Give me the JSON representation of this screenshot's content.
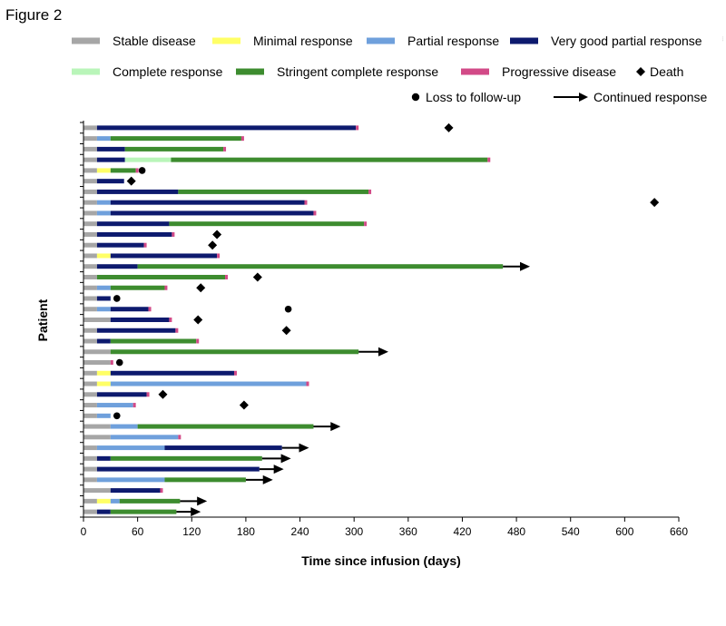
{
  "figure_label": "Figure 2",
  "side_note": "...",
  "colors": {
    "stable": "#a6a6a6",
    "minimal": "#ffff66",
    "partial": "#6fa0dc",
    "vgpr": "#0d1a6e",
    "complete": "#b9f5b9",
    "stringent": "#3d8c2f",
    "progressive": "#d24a87",
    "marker": "#000000"
  },
  "legend": [
    {
      "key": "stable",
      "label": "Stable disease",
      "kind": "bar"
    },
    {
      "key": "minimal",
      "label": "Minimal response",
      "kind": "bar"
    },
    {
      "key": "partial",
      "label": "Partial response",
      "kind": "bar"
    },
    {
      "key": "vgpr",
      "label": "Very good partial response",
      "kind": "bar"
    },
    {
      "key": "complete",
      "label": "Complete response",
      "kind": "bar"
    },
    {
      "key": "stringent",
      "label": "Stringent complete response",
      "kind": "bar"
    },
    {
      "key": "progressive",
      "label": "Progressive disease",
      "kind": "bar"
    },
    {
      "key": "death",
      "label": "Death",
      "kind": "diamond"
    },
    {
      "key": "loss",
      "label": "Loss to follow-up",
      "kind": "circle"
    },
    {
      "key": "continued",
      "label": "Continued response",
      "kind": "arrow"
    }
  ],
  "chart_data": {
    "type": "bar",
    "orientation": "horizontal-stacked-swimmer",
    "xlabel": "Time since infusion (days)",
    "ylabel": "Patient",
    "xlim": [
      0,
      660
    ],
    "xticks": [
      0,
      60,
      120,
      180,
      240,
      300,
      360,
      420,
      480,
      540,
      600,
      660
    ],
    "grid": false,
    "legend_position": "top",
    "patients": [
      {
        "segments": [
          [
            "stable",
            0,
            15
          ],
          [
            "vgpr",
            15,
            302
          ],
          [
            "progressive",
            302,
            305
          ]
        ],
        "event": "death",
        "event_day": 405
      },
      {
        "segments": [
          [
            "stable",
            0,
            15
          ],
          [
            "partial",
            15,
            30
          ],
          [
            "stringent",
            30,
            175
          ],
          [
            "progressive",
            175,
            178
          ]
        ]
      },
      {
        "segments": [
          [
            "stable",
            0,
            15
          ],
          [
            "vgpr",
            15,
            46
          ],
          [
            "stringent",
            46,
            155
          ],
          [
            "progressive",
            155,
            158
          ]
        ]
      },
      {
        "segments": [
          [
            "stable",
            0,
            15
          ],
          [
            "vgpr",
            15,
            46
          ],
          [
            "complete",
            46,
            97
          ],
          [
            "stringent",
            97,
            448
          ],
          [
            "progressive",
            448,
            451
          ]
        ]
      },
      {
        "segments": [
          [
            "stable",
            0,
            15
          ],
          [
            "minimal",
            15,
            30
          ],
          [
            "stringent",
            30,
            58
          ],
          [
            "progressive",
            58,
            61
          ]
        ],
        "event": "loss",
        "event_day": 65
      },
      {
        "segments": [
          [
            "stable",
            0,
            15
          ],
          [
            "vgpr",
            15,
            45
          ]
        ],
        "event": "death",
        "event_day": 53
      },
      {
        "segments": [
          [
            "stable",
            0,
            15
          ],
          [
            "vgpr",
            15,
            105
          ],
          [
            "stringent",
            105,
            316
          ],
          [
            "progressive",
            316,
            319
          ]
        ]
      },
      {
        "segments": [
          [
            "stable",
            0,
            15
          ],
          [
            "partial",
            15,
            30
          ],
          [
            "vgpr",
            30,
            245
          ],
          [
            "progressive",
            245,
            248
          ]
        ],
        "event": "death",
        "event_day": 633
      },
      {
        "segments": [
          [
            "stable",
            0,
            15
          ],
          [
            "partial",
            15,
            30
          ],
          [
            "vgpr",
            30,
            255
          ],
          [
            "progressive",
            255,
            258
          ]
        ]
      },
      {
        "segments": [
          [
            "stable",
            0,
            15
          ],
          [
            "vgpr",
            15,
            95
          ],
          [
            "stringent",
            95,
            311
          ],
          [
            "progressive",
            311,
            314
          ]
        ]
      },
      {
        "segments": [
          [
            "stable",
            0,
            15
          ],
          [
            "vgpr",
            15,
            98
          ],
          [
            "progressive",
            98,
            101
          ]
        ],
        "event": "death",
        "event_day": 148
      },
      {
        "segments": [
          [
            "stable",
            0,
            15
          ],
          [
            "vgpr",
            15,
            67
          ],
          [
            "progressive",
            67,
            70
          ]
        ],
        "event": "death",
        "event_day": 143
      },
      {
        "segments": [
          [
            "stable",
            0,
            15
          ],
          [
            "minimal",
            15,
            30
          ],
          [
            "vgpr",
            30,
            148
          ],
          [
            "progressive",
            148,
            151
          ]
        ]
      },
      {
        "segments": [
          [
            "stable",
            0,
            15
          ],
          [
            "vgpr",
            15,
            60
          ],
          [
            "stringent",
            60,
            465
          ]
        ],
        "event": "continued",
        "event_day": 495
      },
      {
        "segments": [
          [
            "stable",
            0,
            15
          ],
          [
            "stringent",
            15,
            157
          ],
          [
            "progressive",
            157,
            160
          ]
        ],
        "event": "death",
        "event_day": 193
      },
      {
        "segments": [
          [
            "stable",
            0,
            15
          ],
          [
            "partial",
            15,
            30
          ],
          [
            "stringent",
            30,
            90
          ],
          [
            "progressive",
            90,
            93
          ]
        ],
        "event": "death",
        "event_day": 130
      },
      {
        "segments": [
          [
            "stable",
            0,
            15
          ],
          [
            "vgpr",
            15,
            30
          ]
        ],
        "event": "loss",
        "event_day": 37
      },
      {
        "segments": [
          [
            "stable",
            0,
            15
          ],
          [
            "partial",
            15,
            30
          ],
          [
            "vgpr",
            30,
            72
          ],
          [
            "progressive",
            72,
            75
          ]
        ],
        "event": "loss",
        "event_day": 227
      },
      {
        "segments": [
          [
            "stable",
            0,
            30
          ],
          [
            "vgpr",
            30,
            95
          ],
          [
            "progressive",
            95,
            98
          ]
        ],
        "event": "death",
        "event_day": 127
      },
      {
        "segments": [
          [
            "stable",
            0,
            15
          ],
          [
            "vgpr",
            15,
            102
          ],
          [
            "progressive",
            102,
            105
          ]
        ],
        "event": "death",
        "event_day": 225
      },
      {
        "segments": [
          [
            "stable",
            0,
            15
          ],
          [
            "vgpr",
            15,
            30
          ],
          [
            "stringent",
            30,
            125
          ],
          [
            "progressive",
            125,
            128
          ]
        ]
      },
      {
        "segments": [
          [
            "stable",
            0,
            30
          ],
          [
            "stringent",
            30,
            305
          ]
        ],
        "event": "continued",
        "event_day": 338
      },
      {
        "segments": [
          [
            "stable",
            0,
            30
          ],
          [
            "progressive",
            30,
            33
          ]
        ],
        "event": "loss",
        "event_day": 40
      },
      {
        "segments": [
          [
            "stable",
            0,
            15
          ],
          [
            "minimal",
            15,
            30
          ],
          [
            "vgpr",
            30,
            167
          ],
          [
            "progressive",
            167,
            170
          ]
        ]
      },
      {
        "segments": [
          [
            "stable",
            0,
            15
          ],
          [
            "minimal",
            15,
            30
          ],
          [
            "partial",
            30,
            247
          ],
          [
            "progressive",
            247,
            250
          ]
        ]
      },
      {
        "segments": [
          [
            "stable",
            0,
            15
          ],
          [
            "vgpr",
            15,
            70
          ],
          [
            "progressive",
            70,
            73
          ]
        ],
        "event": "death",
        "event_day": 88
      },
      {
        "segments": [
          [
            "stable",
            0,
            15
          ],
          [
            "partial",
            15,
            55
          ],
          [
            "progressive",
            55,
            58
          ]
        ],
        "event": "death",
        "event_day": 178
      },
      {
        "segments": [
          [
            "stable",
            0,
            15
          ],
          [
            "partial",
            15,
            30
          ]
        ],
        "event": "loss",
        "event_day": 37
      },
      {
        "segments": [
          [
            "stable",
            0,
            30
          ],
          [
            "partial",
            30,
            60
          ],
          [
            "stringent",
            60,
            255
          ]
        ],
        "event": "continued",
        "event_day": 285
      },
      {
        "segments": [
          [
            "stable",
            0,
            30
          ],
          [
            "partial",
            30,
            105
          ],
          [
            "progressive",
            105,
            108
          ]
        ]
      },
      {
        "segments": [
          [
            "stable",
            0,
            15
          ],
          [
            "partial",
            15,
            90
          ],
          [
            "vgpr",
            90,
            220
          ]
        ],
        "event": "continued",
        "event_day": 250
      },
      {
        "segments": [
          [
            "stable",
            0,
            15
          ],
          [
            "vgpr",
            15,
            30
          ],
          [
            "stringent",
            30,
            198
          ]
        ],
        "event": "continued",
        "event_day": 230
      },
      {
        "segments": [
          [
            "stable",
            0,
            15
          ],
          [
            "vgpr",
            15,
            195
          ]
        ],
        "event": "continued",
        "event_day": 222
      },
      {
        "segments": [
          [
            "stable",
            0,
            15
          ],
          [
            "partial",
            15,
            90
          ],
          [
            "stringent",
            90,
            180
          ]
        ],
        "event": "continued",
        "event_day": 210
      },
      {
        "segments": [
          [
            "stable",
            0,
            30
          ],
          [
            "vgpr",
            30,
            85
          ],
          [
            "progressive",
            85,
            88
          ]
        ]
      },
      {
        "segments": [
          [
            "stable",
            0,
            15
          ],
          [
            "minimal",
            15,
            30
          ],
          [
            "partial",
            30,
            40
          ],
          [
            "stringent",
            40,
            107
          ]
        ],
        "event": "continued",
        "event_day": 137
      },
      {
        "segments": [
          [
            "stable",
            0,
            15
          ],
          [
            "vgpr",
            15,
            30
          ],
          [
            "stringent",
            30,
            103
          ]
        ],
        "event": "continued",
        "event_day": 130
      }
    ]
  }
}
